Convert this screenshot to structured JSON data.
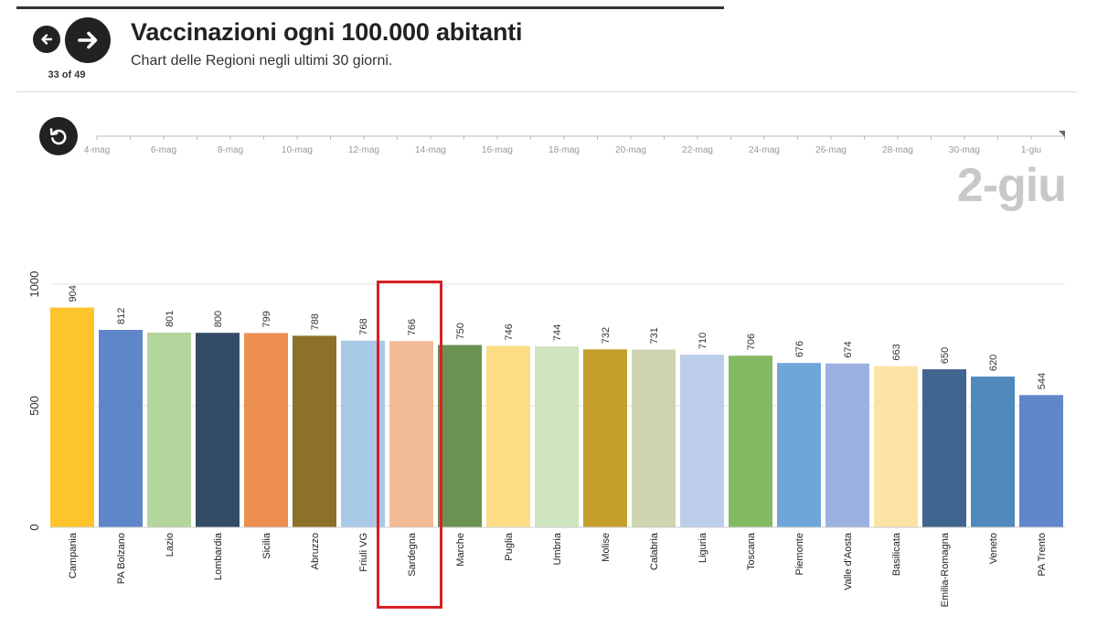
{
  "nav": {
    "counter": "33 of 49",
    "prev_icon": "arrow-left-icon",
    "next_icon": "arrow-right-icon",
    "replay_icon": "replay-icon"
  },
  "header": {
    "title": "Vaccinazioni ogni 100.000 abitanti",
    "subtitle": "Chart delle Regioni negli ultimi 30 giorni."
  },
  "timeline": {
    "labels": [
      "4-mag",
      "6-mag",
      "8-mag",
      "10-mag",
      "12-mag",
      "14-mag",
      "16-mag",
      "18-mag",
      "20-mag",
      "22-mag",
      "24-mag",
      "26-mag",
      "28-mag",
      "30-mag",
      "1-giu"
    ],
    "current": "2-giu",
    "progress": 1.0
  },
  "highlight": {
    "category": "Sardegna",
    "color": "#d62027"
  },
  "chart_data": {
    "type": "bar",
    "title": "Vaccinazioni ogni 100.000 abitanti",
    "categories": [
      "Campania",
      "PA Bolzano",
      "Lazio",
      "Lombardia",
      "Sicilia",
      "Abruzzo",
      "Friuli VG",
      "Sardegna",
      "Marche",
      "Puglia",
      "Umbria",
      "Molise",
      "Calabria",
      "Liguria",
      "Toscana",
      "Piemonte",
      "Valle d'Aosta",
      "Basilicata",
      "Emilia-Romagna",
      "Veneto",
      "PA Trento"
    ],
    "values": [
      904,
      812,
      801,
      800,
      799,
      788,
      768,
      766,
      750,
      746,
      744,
      732,
      731,
      710,
      706,
      676,
      674,
      663,
      650,
      620,
      544
    ],
    "colors": [
      "#fec42b",
      "#5f86c9",
      "#b5d59e",
      "#344b65",
      "#ec8f4f",
      "#8d7128",
      "#a9c9e9",
      "#f3bb96",
      "#6a9353",
      "#fcdc84",
      "#cfe5bf",
      "#c49f2b",
      "#ced4b0",
      "#bbcde9",
      "#84b963",
      "#6fa6d9",
      "#9cb1e0",
      "#fbe3a3",
      "#40658f",
      "#4f89bd",
      "#6286cc"
    ],
    "yticks": [
      0,
      500,
      1000
    ],
    "ylim": [
      0,
      1000
    ],
    "grid": true
  }
}
